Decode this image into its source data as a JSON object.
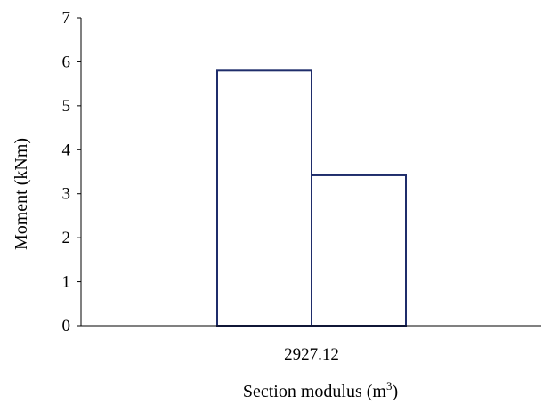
{
  "chart_data": {
    "type": "bar",
    "categories": [
      "2927.12"
    ],
    "series": [
      {
        "values": [
          5.8
        ]
      },
      {
        "values": [
          3.42
        ]
      }
    ],
    "xlabel": "Section modulus (m",
    "xlabel_superscript": "3",
    "xlabel_suffix": ")",
    "ylabel": "Moment (kNm)",
    "ylim": [
      0,
      7
    ],
    "yticks": [
      0,
      1,
      2,
      3,
      4,
      5,
      6,
      7
    ],
    "grid": false,
    "legend": "none",
    "colors": {
      "bar_fill": "#ffffff",
      "bar_stroke": "#1f2d6b",
      "axis": "#000000"
    }
  }
}
